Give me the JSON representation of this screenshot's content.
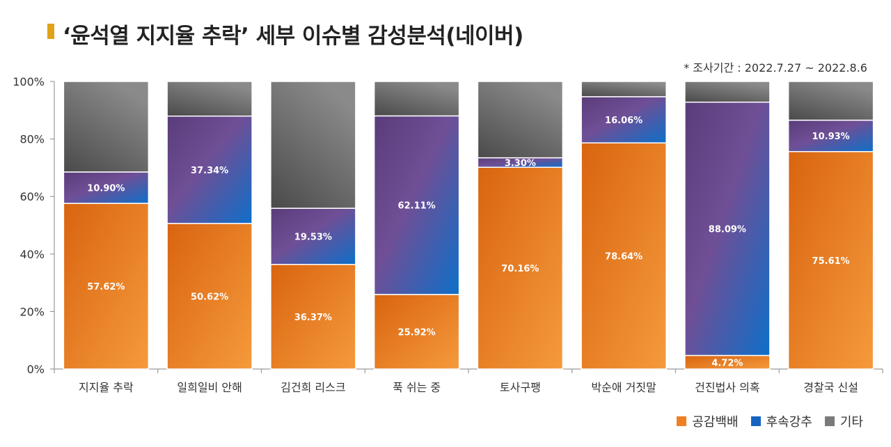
{
  "header": {
    "title": "‘윤석열 지지율 추락’ 세부 이슈별 감성분석(네이버)",
    "period": "* 조사기간 : 2022.7.27 ~ 2022.8.6"
  },
  "colors": {
    "accent": "#e0a317",
    "series": [
      "#ef7f22",
      "#1565c0",
      "#7a7a7a"
    ],
    "purple": "#6b4a8e"
  },
  "chart_data": {
    "type": "bar",
    "stacked": true,
    "categories": [
      "지지율 추락",
      "일희일비 안해",
      "김건희 리스크",
      "푹 쉬는 중",
      "토사구팽",
      "박순애 거짓말",
      "건진법사 의혹",
      "경찰국 신설"
    ],
    "series": [
      {
        "name": "공감백배",
        "values": [
          57.62,
          50.62,
          36.37,
          25.92,
          70.16,
          78.64,
          4.72,
          75.61
        ],
        "labels": [
          "57.62%",
          "50.62%",
          "36.37%",
          "25.92%",
          "70.16%",
          "78.64%",
          "4.72%",
          "75.61%"
        ]
      },
      {
        "name": "후속강추",
        "values": [
          10.9,
          37.34,
          19.53,
          62.11,
          3.3,
          16.06,
          88.09,
          10.93
        ],
        "labels": [
          "10.90%",
          "37.34%",
          "19.53%",
          "62.11%",
          "3.30%",
          "16.06%",
          "88.09%",
          "10.93%"
        ]
      },
      {
        "name": "기타",
        "values": [
          31.48,
          12.04,
          44.1,
          11.97,
          26.54,
          5.3,
          7.19,
          13.46
        ]
      }
    ],
    "y_ticks": [
      "0%",
      "20%",
      "40%",
      "60%",
      "80%",
      "100%"
    ],
    "ylim": [
      0,
      100
    ],
    "grid": false,
    "legend": "bottom-right"
  }
}
